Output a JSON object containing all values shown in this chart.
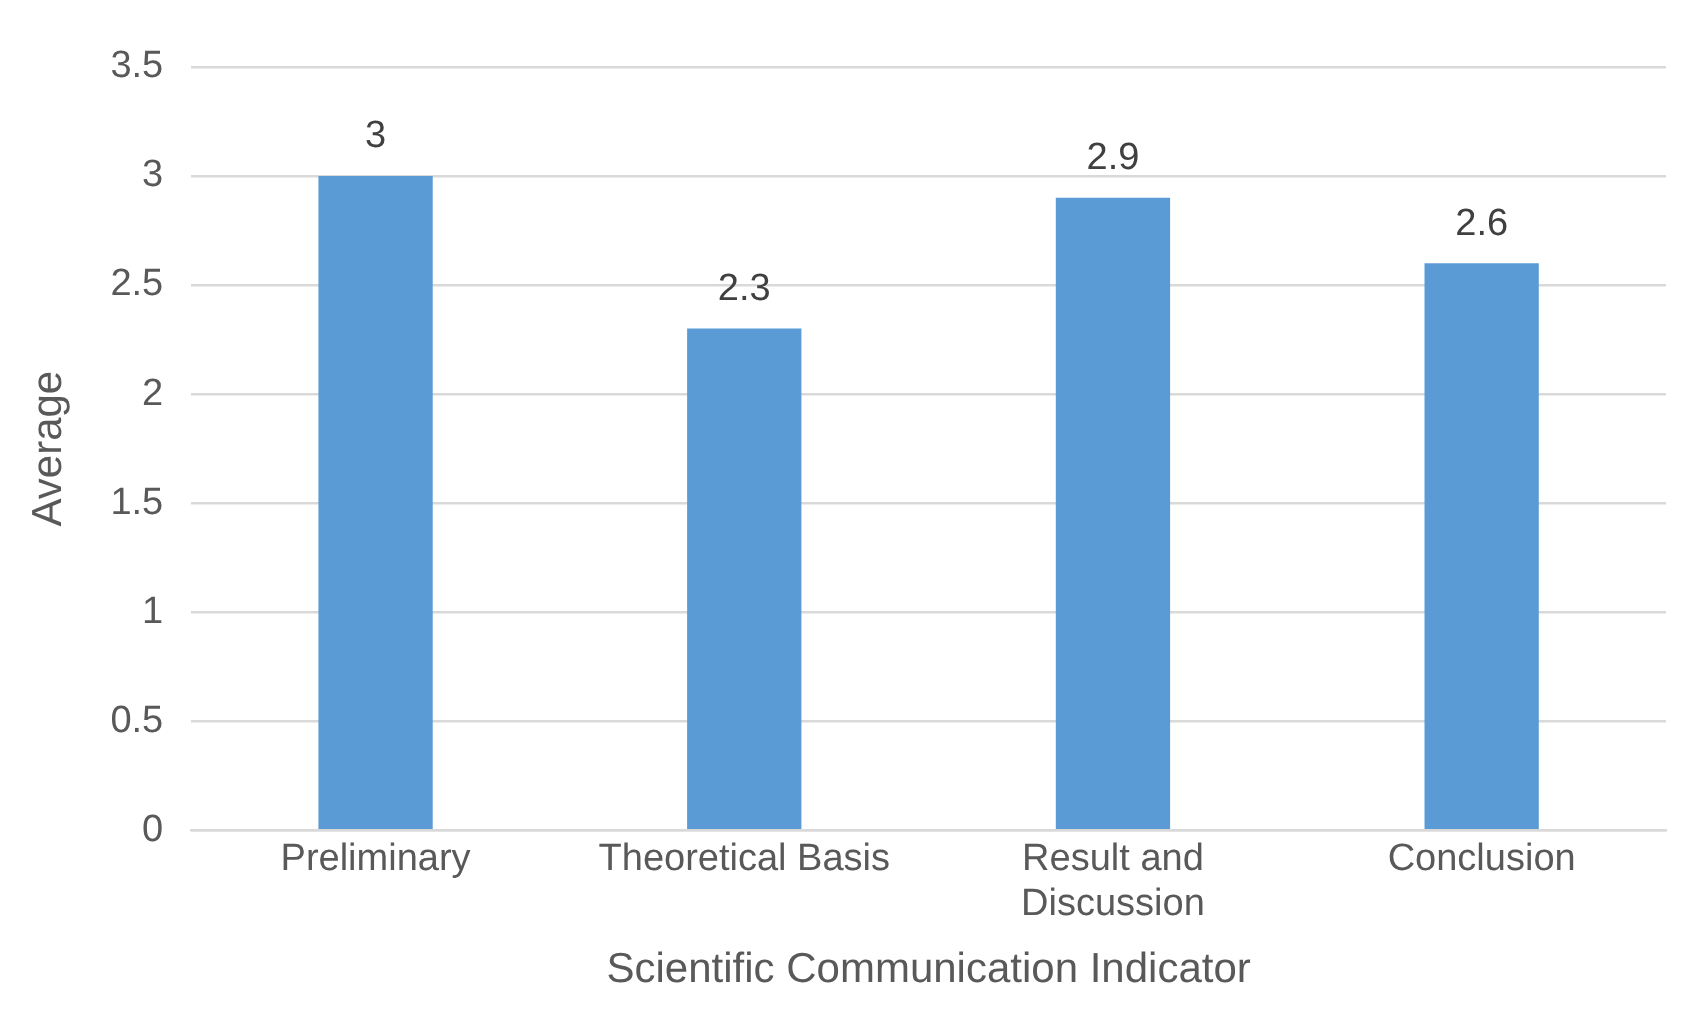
{
  "chart_data": {
    "type": "bar",
    "xlabel": "Scientific Communication Indicator",
    "ylabel": "Average",
    "categories": [
      "Preliminary",
      "Theoretical Basis",
      "Result and Discussion",
      "Conclusion"
    ],
    "values": [
      3,
      2.3,
      2.9,
      2.6
    ],
    "color": "#5b9bd5",
    "ylim": [
      0,
      3.5
    ],
    "yticks": [
      0,
      0.5,
      1,
      1.5,
      2,
      2.5,
      3,
      3.5
    ],
    "grid": "y",
    "data_labels": true,
    "legend": false
  }
}
